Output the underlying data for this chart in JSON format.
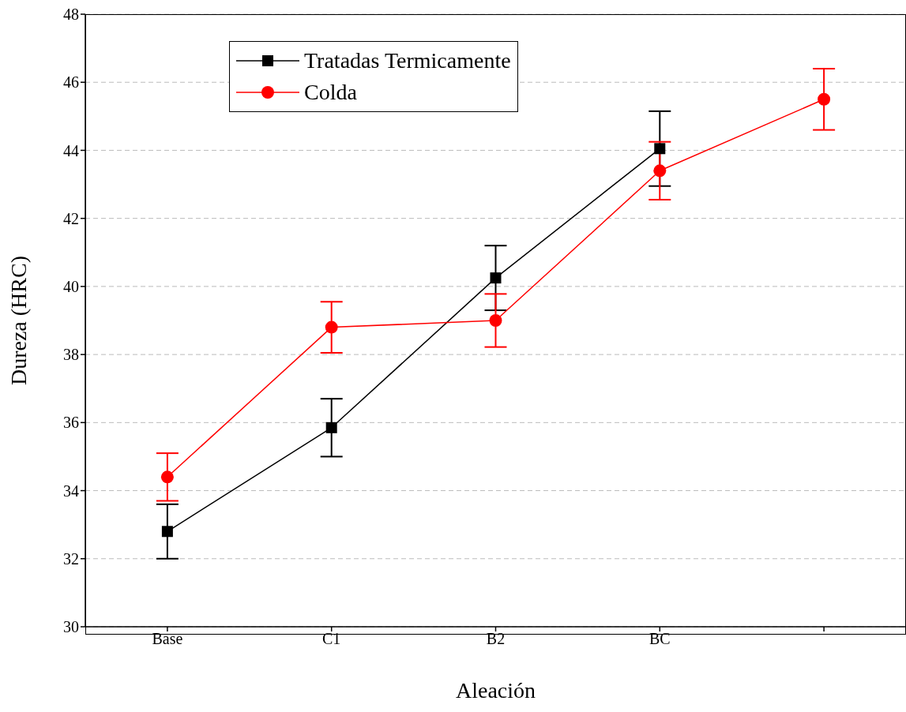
{
  "chart_data": {
    "type": "line",
    "xlabel": "Aleación",
    "ylabel": "Dureza (HRC)",
    "categories": [
      "Base",
      "C1",
      "B2",
      "BC",
      null
    ],
    "series": [
      {
        "name": "Tratadas Termicamente",
        "color": "#000000",
        "marker": "square",
        "values": [
          32.8,
          35.85,
          40.25,
          44.05,
          null
        ],
        "errors": [
          0.8,
          0.85,
          0.95,
          1.1,
          null
        ]
      },
      {
        "name": "Colda",
        "color": "#ff0000",
        "marker": "circle",
        "values": [
          34.4,
          38.8,
          39.0,
          43.4,
          45.5
        ],
        "errors": [
          0.7,
          0.75,
          0.78,
          0.85,
          0.9
        ]
      }
    ],
    "ylim": [
      30,
      48
    ],
    "yticks": [
      30,
      32,
      34,
      36,
      38,
      40,
      42,
      44,
      46,
      48
    ],
    "grid": "y",
    "legend": "top left"
  }
}
